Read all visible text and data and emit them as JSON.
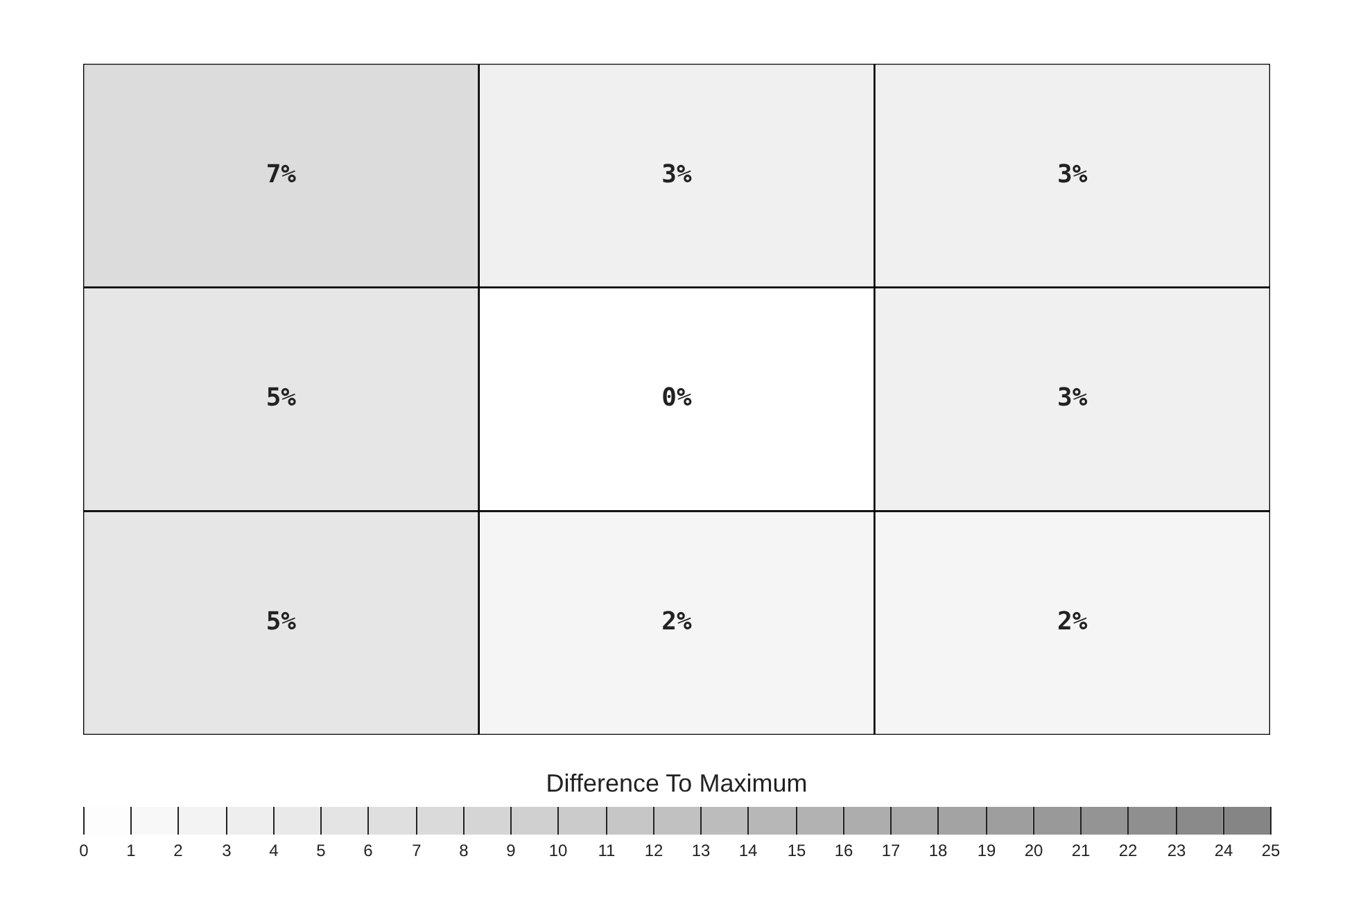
{
  "chart_data": {
    "type": "heatmap",
    "categories": [
      null,
      null,
      null
    ],
    "y_categories": [
      null,
      null,
      null
    ],
    "cells": [
      [
        7,
        3,
        3
      ],
      [
        5,
        0,
        3
      ],
      [
        5,
        2,
        2
      ]
    ],
    "cell_labels": [
      [
        "7%",
        "3%",
        "3%"
      ],
      [
        "5%",
        "0%",
        "3%"
      ],
      [
        "5%",
        "2%",
        "2%"
      ]
    ],
    "clabel": "Difference To Maximum",
    "clim": [
      0,
      25
    ],
    "cticks": [
      0,
      1,
      2,
      3,
      4,
      5,
      6,
      7,
      8,
      9,
      10,
      11,
      12,
      13,
      14,
      15,
      16,
      17,
      18,
      19,
      20,
      21,
      22,
      23,
      24,
      25
    ]
  }
}
